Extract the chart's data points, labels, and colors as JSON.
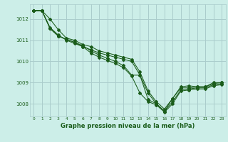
{
  "background_color": "#cceee8",
  "grid_color": "#aacccc",
  "line_color": "#1a5c1a",
  "xlabel": "Graphe pression niveau de la mer (hPa)",
  "xlim": [
    -0.5,
    23.5
  ],
  "ylim": [
    1007.4,
    1012.7
  ],
  "yticks": [
    1008,
    1009,
    1010,
    1011,
    1012
  ],
  "xticks": [
    0,
    1,
    2,
    3,
    4,
    5,
    6,
    7,
    8,
    9,
    10,
    11,
    12,
    13,
    14,
    15,
    16,
    17,
    18,
    19,
    20,
    21,
    22,
    23
  ],
  "series": [
    [
      1012.4,
      1012.4,
      1012.0,
      1011.5,
      1011.1,
      1011.0,
      1010.8,
      1010.7,
      1010.5,
      1010.4,
      1010.3,
      1010.2,
      1010.1,
      1009.5,
      1008.6,
      1008.1,
      1007.75,
      1008.25,
      1008.8,
      1008.85,
      1008.8,
      1008.8,
      1009.0,
      1009.0
    ],
    [
      1012.4,
      1012.4,
      1011.6,
      1011.25,
      1011.0,
      1010.85,
      1010.7,
      1010.55,
      1010.4,
      1010.3,
      1010.2,
      1010.1,
      1010.0,
      1009.35,
      1008.5,
      1008.0,
      1007.65,
      1008.1,
      1008.65,
      1008.7,
      1008.75,
      1008.75,
      1008.9,
      1008.95
    ],
    [
      1012.4,
      1012.4,
      1011.55,
      1011.2,
      1011.05,
      1010.9,
      1010.75,
      1010.5,
      1010.3,
      1010.15,
      1010.0,
      1009.8,
      1009.35,
      1009.35,
      1008.2,
      1008.0,
      1007.65,
      1008.25,
      1008.75,
      1008.75,
      1008.8,
      1008.8,
      1008.95,
      1009.0
    ],
    [
      1012.4,
      1012.4,
      1011.55,
      1011.2,
      1011.05,
      1010.9,
      1010.7,
      1010.4,
      1010.2,
      1010.05,
      1009.9,
      1009.7,
      1009.3,
      1008.5,
      1008.1,
      1007.95,
      1007.6,
      1008.0,
      1008.6,
      1008.65,
      1008.7,
      1008.7,
      1008.85,
      1008.9
    ]
  ]
}
